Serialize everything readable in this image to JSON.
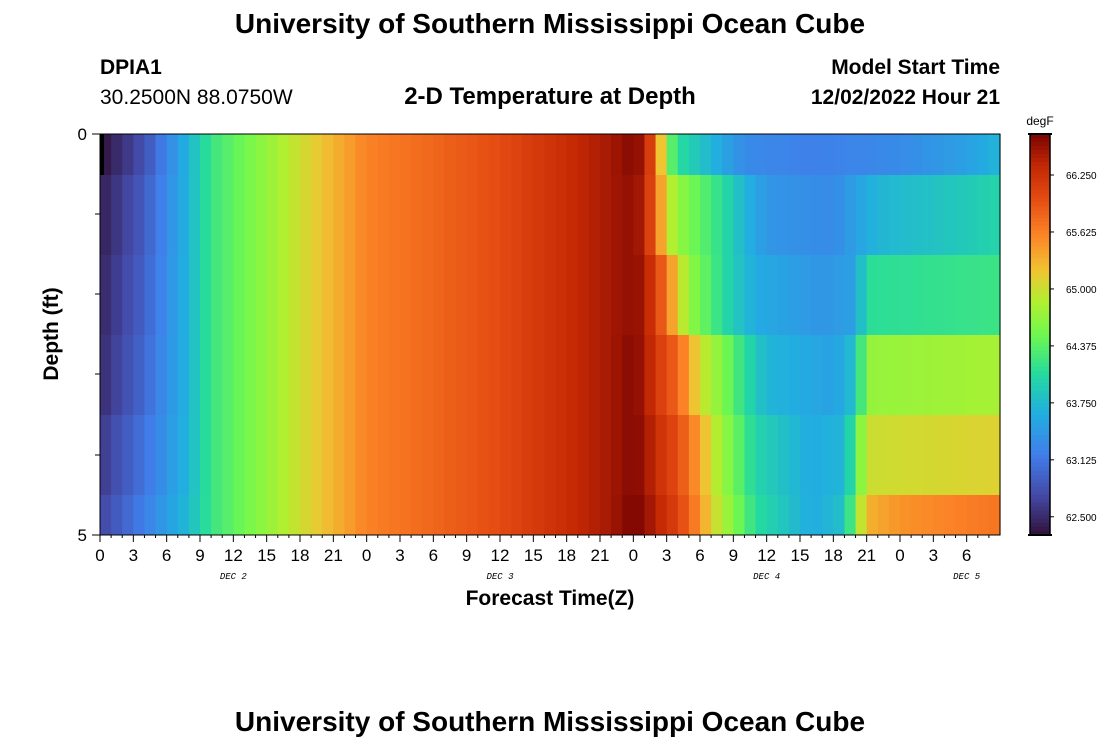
{
  "header": {
    "title": "University of Southern Mississippi Ocean Cube",
    "station_id": "DPIA1",
    "coords": "30.2500N  88.0750W",
    "subtitle": "2-D Temperature at Depth",
    "start_label": "Model Start Time",
    "start_value": "12/02/2022 Hour 21"
  },
  "footer": {
    "title": "University of Southern Mississippi Ocean Cube"
  },
  "chart_data": {
    "type": "heatmap",
    "title": "2-D Temperature at Depth",
    "xlabel": "Forecast Time(Z)",
    "ylabel": "Depth (ft)",
    "unit": "degF",
    "xlim": [
      0,
      81
    ],
    "ylim": [
      5,
      0
    ],
    "x_tick_labels": [
      "0",
      "3",
      "6",
      "9",
      "12",
      "15",
      "18",
      "21",
      "0",
      "3",
      "6",
      "9",
      "12",
      "15",
      "18",
      "21",
      "0",
      "3",
      "6",
      "9",
      "12",
      "15",
      "18",
      "21",
      "0",
      "3",
      "6"
    ],
    "date_labels": [
      {
        "label": "DEC 2",
        "hour": 12
      },
      {
        "label": "DEC 3",
        "hour": 36
      },
      {
        "label": "DEC 4",
        "hour": 60
      },
      {
        "label": "DEC 5",
        "hour": 78
      }
    ],
    "y_tick_labels": [
      "0",
      "5"
    ],
    "colorbar": {
      "min": 62.3,
      "max": 66.7,
      "tick_values": [
        62.5,
        63.125,
        63.75,
        64.375,
        65.0,
        65.625,
        66.25
      ],
      "tick_labels": [
        "62.500",
        "63.125",
        "63.750",
        "64.375",
        "65.000",
        "65.625",
        "66.250"
      ]
    },
    "depth_rows": [
      {
        "depth": "0-0.5",
        "key": [
          [
            0,
            62.3
          ],
          [
            4,
            62.8
          ],
          [
            8,
            63.7
          ],
          [
            10,
            64.2
          ],
          [
            18,
            65.0
          ],
          [
            24,
            65.6
          ],
          [
            36,
            66.0
          ],
          [
            42,
            66.3
          ],
          [
            46,
            66.5
          ],
          [
            48,
            66.65
          ],
          [
            49,
            66.5
          ],
          [
            50,
            65.8
          ],
          [
            51,
            64.6
          ],
          [
            52,
            64.1
          ],
          [
            55,
            63.7
          ],
          [
            58,
            63.3
          ],
          [
            64,
            63.2
          ],
          [
            72,
            63.3
          ],
          [
            78,
            63.5
          ],
          [
            81,
            63.7
          ]
        ]
      },
      {
        "depth": "0.5-1.5",
        "key": [
          [
            0,
            62.4
          ],
          [
            4,
            62.9
          ],
          [
            8,
            63.7
          ],
          [
            10,
            64.2
          ],
          [
            18,
            65.0
          ],
          [
            24,
            65.6
          ],
          [
            36,
            66.0
          ],
          [
            42,
            66.3
          ],
          [
            46,
            66.5
          ],
          [
            48,
            66.6
          ],
          [
            49,
            66.4
          ],
          [
            50,
            65.8
          ],
          [
            51,
            65.0
          ],
          [
            52,
            64.7
          ],
          [
            54,
            64.4
          ],
          [
            56,
            64.1
          ],
          [
            58,
            63.7
          ],
          [
            60,
            63.4
          ],
          [
            66,
            63.3
          ],
          [
            70,
            63.7
          ],
          [
            78,
            63.9
          ],
          [
            81,
            64.0
          ]
        ]
      },
      {
        "depth": "1.5-2.5",
        "key": [
          [
            0,
            62.45
          ],
          [
            4,
            62.95
          ],
          [
            8,
            63.7
          ],
          [
            10,
            64.2
          ],
          [
            18,
            65.0
          ],
          [
            24,
            65.6
          ],
          [
            36,
            66.0
          ],
          [
            42,
            66.3
          ],
          [
            46,
            66.5
          ],
          [
            48,
            66.6
          ],
          [
            49,
            66.5
          ],
          [
            50,
            66.1
          ],
          [
            51,
            65.7
          ],
          [
            52,
            65.1
          ],
          [
            53,
            64.7
          ],
          [
            55,
            64.3
          ],
          [
            57,
            63.9
          ],
          [
            59,
            63.6
          ],
          [
            65,
            63.4
          ],
          [
            68,
            63.5
          ],
          [
            69,
            64.1
          ],
          [
            81,
            64.2
          ]
        ]
      },
      {
        "depth": "2.5-3.5",
        "key": [
          [
            0,
            62.5
          ],
          [
            4,
            63.0
          ],
          [
            8,
            63.7
          ],
          [
            10,
            64.2
          ],
          [
            18,
            65.0
          ],
          [
            24,
            65.6
          ],
          [
            36,
            66.0
          ],
          [
            42,
            66.3
          ],
          [
            46,
            66.5
          ],
          [
            48,
            66.65
          ],
          [
            49,
            66.5
          ],
          [
            50,
            66.2
          ],
          [
            52,
            65.8
          ],
          [
            53,
            65.4
          ],
          [
            54,
            65.0
          ],
          [
            56,
            64.6
          ],
          [
            58,
            64.1
          ],
          [
            60,
            63.7
          ],
          [
            66,
            63.5
          ],
          [
            68,
            63.8
          ],
          [
            69,
            64.7
          ],
          [
            81,
            64.8
          ]
        ]
      },
      {
        "depth": "3.5-4.5",
        "key": [
          [
            0,
            62.6
          ],
          [
            4,
            63.1
          ],
          [
            8,
            63.7
          ],
          [
            10,
            64.2
          ],
          [
            18,
            65.0
          ],
          [
            24,
            65.6
          ],
          [
            36,
            66.0
          ],
          [
            42,
            66.3
          ],
          [
            46,
            66.5
          ],
          [
            48,
            66.65
          ],
          [
            49,
            66.55
          ],
          [
            50,
            66.3
          ],
          [
            52,
            66.0
          ],
          [
            53,
            65.7
          ],
          [
            54,
            65.4
          ],
          [
            55,
            65.0
          ],
          [
            57,
            64.5
          ],
          [
            59,
            64.0
          ],
          [
            64,
            63.6
          ],
          [
            67,
            63.7
          ],
          [
            68,
            64.3
          ],
          [
            69,
            65.0
          ],
          [
            81,
            65.1
          ]
        ]
      },
      {
        "depth": "4.5-5",
        "key": [
          [
            0,
            62.7
          ],
          [
            4,
            63.2
          ],
          [
            8,
            63.75
          ],
          [
            10,
            64.2
          ],
          [
            18,
            65.0
          ],
          [
            24,
            65.6
          ],
          [
            36,
            66.0
          ],
          [
            42,
            66.3
          ],
          [
            46,
            66.5
          ],
          [
            48,
            66.7
          ],
          [
            49,
            66.6
          ],
          [
            50,
            66.4
          ],
          [
            52,
            66.1
          ],
          [
            53,
            65.8
          ],
          [
            54,
            65.5
          ],
          [
            55,
            65.1
          ],
          [
            57,
            64.6
          ],
          [
            59,
            64.1
          ],
          [
            64,
            63.6
          ],
          [
            67,
            63.8
          ],
          [
            68,
            64.6
          ],
          [
            69,
            65.3
          ],
          [
            72,
            65.5
          ],
          [
            81,
            65.7
          ]
        ]
      }
    ]
  }
}
